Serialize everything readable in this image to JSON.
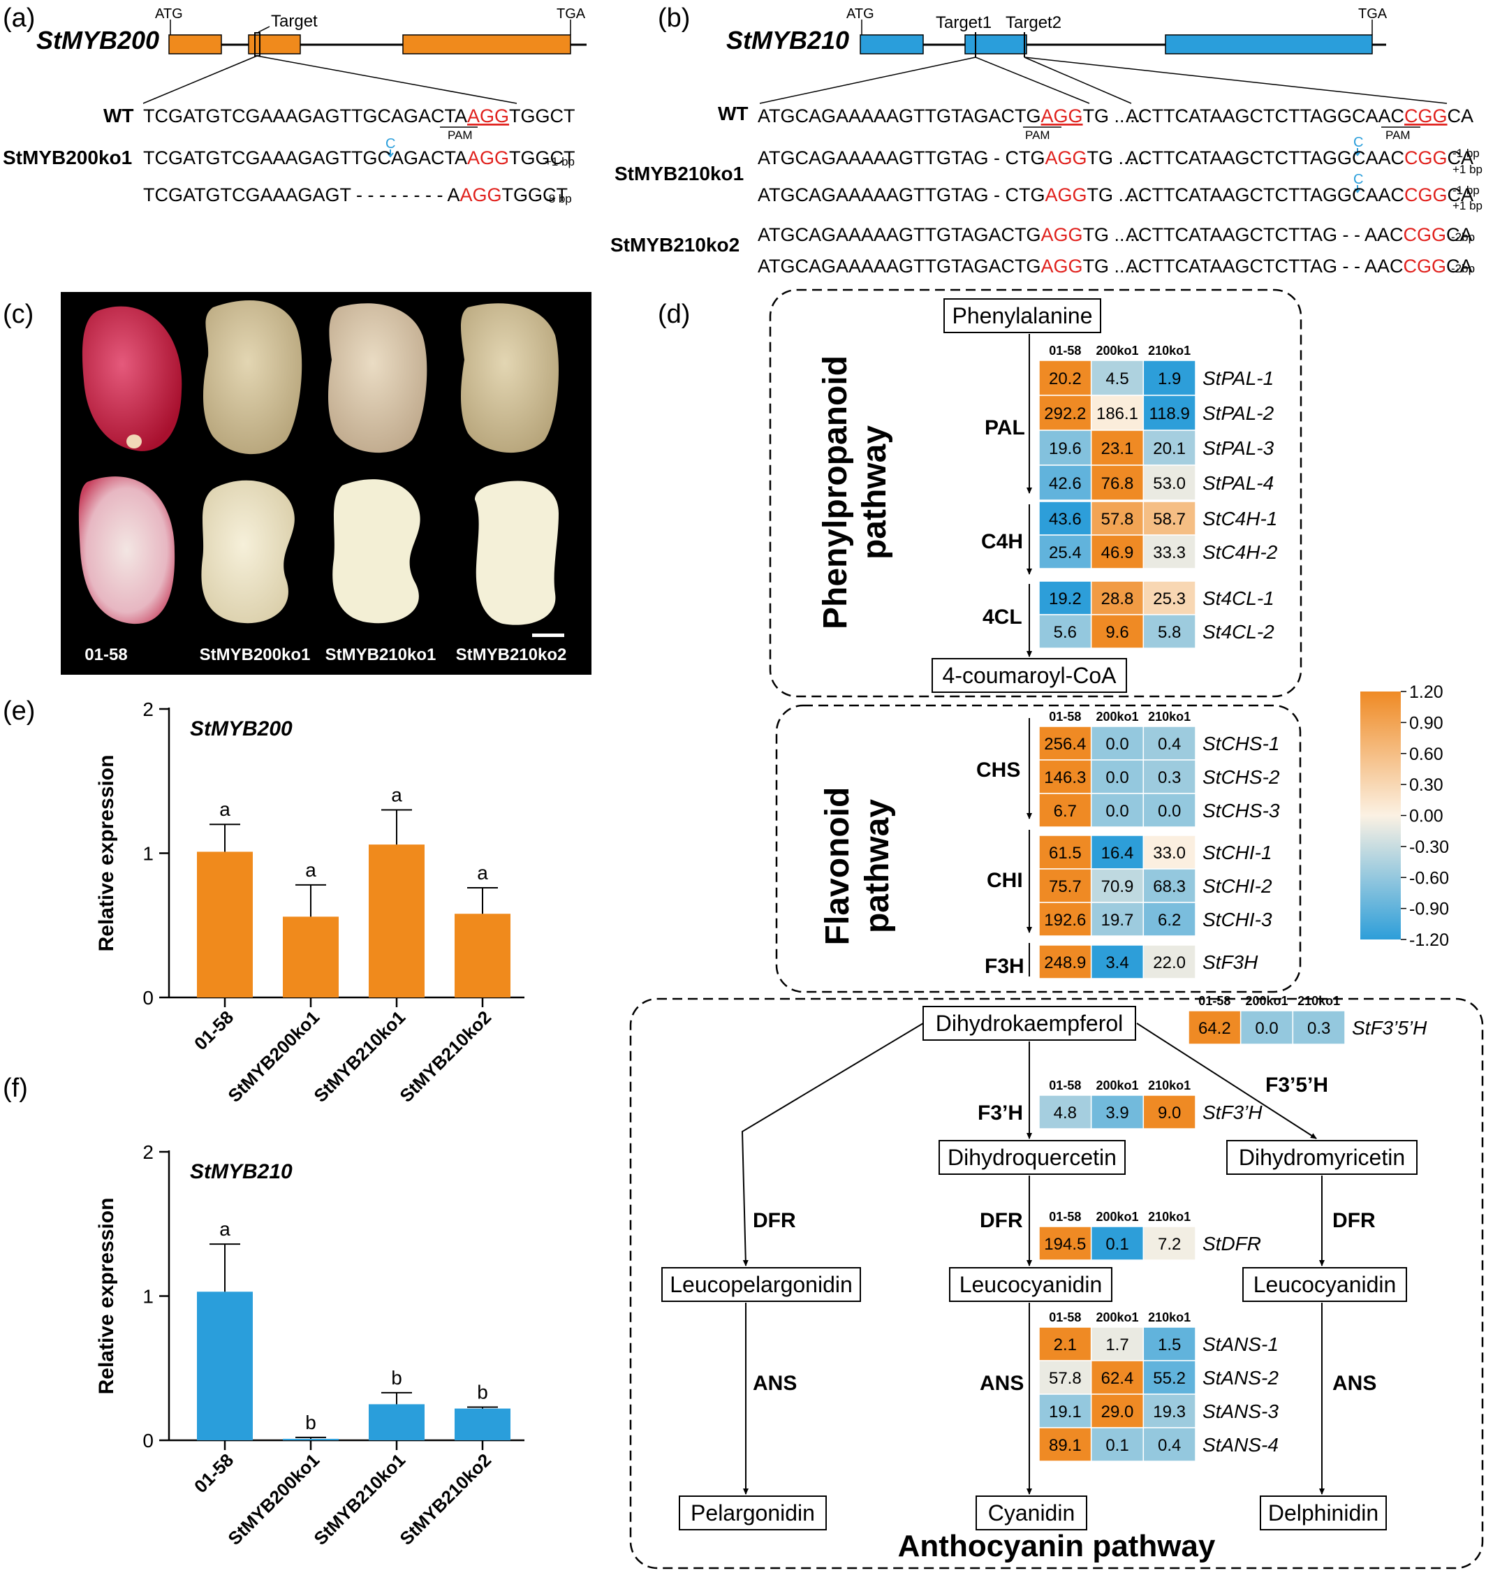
{
  "panels": {
    "a": "(a)",
    "b": "(b)",
    "c": "(c)",
    "d": "(d)",
    "e": "(e)",
    "f": "(f)"
  },
  "panel_a": {
    "gene": "StMYB200",
    "atg": "ATG",
    "tga": "TGA",
    "target": "Target",
    "wt_label": "WT",
    "wt_pre": "TCGATGTCGAAAGAGTTGCAGACTA",
    "wt_pam": "AGG",
    "wt_post": "TGGCT",
    "pam": "PAM",
    "ko_label": "StMYB200ko1",
    "ins": "C",
    "ko1_pre": "TCGATGTCGAAAGAGTTGCAGACTA",
    "ko1_pam": "AGG",
    "ko1_post": "TGGCT",
    "ko1_tag": "+1 bp",
    "ko2_pre": "TCGATGTCGAAAGAGT - - - - - - - - A",
    "ko2_pam": "AGG",
    "ko2_post": "TGGCT",
    "ko2_tag": "-8 bp"
  },
  "panel_b": {
    "gene": "StMYB210",
    "atg": "ATG",
    "tga": "TGA",
    "target1": "Target1",
    "target2": "Target2",
    "wt_label": "WT",
    "pam": "PAM",
    "ins": "C",
    "wt_l_pre": "ATGCAGAAAAAGTTGTAGACTG",
    "wt_l_pam": "AGG",
    "wt_l_post": "TG ......",
    "wt_r_pre": "ACTTCATAAGCTCTTAGGCAAC",
    "wt_r_pam": "CGG",
    "wt_r_post": "CA",
    "ko1_label": "StMYB210ko1",
    "ko2_label": "StMYB210ko2",
    "ko1_l_pre": "ATGCAGAAAAAGTTGTAG - CTG",
    "ko1_l_pam": "AGG",
    "ko1_l_post": "TG ......",
    "ko1_r_pre": "ACTTCATAAGCTCTTAGGCAAC",
    "ko1_r_pam": "CGG",
    "ko1_r_post": "CA",
    "ko1_tag_a": "-1 bp",
    "ko1_tag_b": "+1 bp",
    "ko2_l_pre": "ATGCAGAAAAAGTTGTAGACTG",
    "ko2_l_pam": "AGG",
    "ko2_l_post": "TG ......",
    "ko2_r_pre": "ACTTCATAAGCTCTTAG - - AAC",
    "ko2_r_pam": "CGG",
    "ko2_r_post": "CA",
    "ko2_tag": "-2bp"
  },
  "panel_c": {
    "labels": [
      "01-58",
      "StMYB200ko1",
      "StMYB210ko1",
      "StMYB210ko2"
    ]
  },
  "panel_d": {
    "columns": [
      "01-58",
      "200ko1",
      "210ko1"
    ],
    "pathways": {
      "phenylpropanoid_1": "Phenylpropanoid",
      "phenylpropanoid_2": "pathway",
      "flavonoid_1": "Flavonoid",
      "flavonoid_2": "pathway",
      "anthocyanin": "Anthocyanin pathway"
    },
    "metabolites": {
      "phe": "Phenylalanine",
      "coa": "4-coumaroyl-CoA",
      "dhk": "Dihydrokaempferol",
      "dhq": "Dihydroquercetin",
      "dhm": "Dihydromyricetin",
      "lpel": "Leucopelargonidin",
      "lcy1": "Leucocyanidin",
      "lcy2": "Leucocyanidin",
      "pel": "Pelargonidin",
      "cya": "Cyanidin",
      "del": "Delphinidin"
    },
    "enzymes": {
      "pal": "PAL",
      "c4h": "C4H",
      "cl4": "4CL",
      "chs": "CHS",
      "chi": "CHI",
      "f3h": "F3H",
      "f3ph": "F3’H",
      "f35h": "F3’5’H",
      "dfr_l": "DFR",
      "dfr_m": "DFR",
      "dfr_r": "DFR",
      "ans_l": "ANS",
      "ans_m": "ANS",
      "ans_r": "ANS"
    },
    "colorbar": {
      "ticks": [
        "1.20",
        "0.90",
        "0.60",
        "0.30",
        "0.00",
        "-0.30",
        "-0.60",
        "-0.90",
        "-1.20"
      ]
    },
    "heatmap_colors": {
      "high": "#ef8a24",
      "mid": "#fbf1e3",
      "low": "#2d9ed9"
    },
    "groups": [
      {
        "id": "pal",
        "rows": [
          {
            "gene": "StPAL-1",
            "values": [
              "20.2",
              "4.5",
              "1.9"
            ],
            "z": [
              1.2,
              -0.45,
              -1.2
            ]
          },
          {
            "gene": "StPAL-2",
            "values": [
              "292.2",
              "186.1",
              "118.9"
            ],
            "z": [
              1.2,
              0.05,
              -1.2
            ]
          },
          {
            "gene": "StPAL-3",
            "values": [
              "19.6",
              "23.1",
              "20.1"
            ],
            "z": [
              -0.7,
              1.2,
              -0.5
            ]
          },
          {
            "gene": "StPAL-4",
            "values": [
              "42.6",
              "76.8",
              "53.0"
            ],
            "z": [
              -0.9,
              1.2,
              -0.1
            ]
          }
        ]
      },
      {
        "id": "c4h",
        "rows": [
          {
            "gene": "StC4H-1",
            "values": [
              "43.6",
              "57.8",
              "58.7"
            ],
            "z": [
              -1.2,
              0.9,
              0.6
            ]
          },
          {
            "gene": "StC4H-2",
            "values": [
              "25.4",
              "46.9",
              "33.3"
            ],
            "z": [
              -0.9,
              1.2,
              -0.1
            ]
          }
        ]
      },
      {
        "id": "cl4",
        "rows": [
          {
            "gene": "St4CL-1",
            "values": [
              "19.2",
              "28.8",
              "25.3"
            ],
            "z": [
              -1.2,
              1.0,
              0.3
            ]
          },
          {
            "gene": "St4CL-2",
            "values": [
              "5.6",
              "9.6",
              "5.8"
            ],
            "z": [
              -0.6,
              1.2,
              -0.55
            ]
          }
        ]
      },
      {
        "id": "chs",
        "rows": [
          {
            "gene": "StCHS-1",
            "values": [
              "256.4",
              "0.0",
              "0.4"
            ],
            "z": [
              1.2,
              -0.6,
              -0.55
            ]
          },
          {
            "gene": "StCHS-2",
            "values": [
              "146.3",
              "0.0",
              "0.3"
            ],
            "z": [
              1.2,
              -0.6,
              -0.55
            ]
          },
          {
            "gene": "StCHS-3",
            "values": [
              "6.7",
              "0.0",
              "0.0"
            ],
            "z": [
              1.2,
              -0.6,
              -0.6
            ]
          }
        ]
      },
      {
        "id": "chi",
        "rows": [
          {
            "gene": "StCHI-1",
            "values": [
              "61.5",
              "16.4",
              "33.0"
            ],
            "z": [
              1.2,
              -1.2,
              0.02
            ]
          },
          {
            "gene": "StCHI-2",
            "values": [
              "75.7",
              "70.9",
              "68.3"
            ],
            "z": [
              1.2,
              -0.35,
              -0.6
            ]
          },
          {
            "gene": "StCHI-3",
            "values": [
              "192.6",
              "19.7",
              "6.2"
            ],
            "z": [
              1.2,
              -0.55,
              -0.75
            ]
          }
        ]
      },
      {
        "id": "f3h",
        "rows": [
          {
            "gene": "StF3H",
            "values": [
              "248.9",
              "3.4",
              "22.0"
            ],
            "z": [
              1.2,
              -1.2,
              -0.1
            ]
          }
        ]
      },
      {
        "id": "f35h",
        "rows": [
          {
            "gene": "StF3’5’H",
            "values": [
              "64.2",
              "0.0",
              "0.3"
            ],
            "z": [
              1.2,
              -0.6,
              -0.6
            ]
          }
        ]
      },
      {
        "id": "f3ph",
        "rows": [
          {
            "gene": "StF3’H",
            "values": [
              "4.8",
              "3.9",
              "9.0"
            ],
            "z": [
              -0.5,
              -0.8,
              1.2
            ]
          }
        ]
      },
      {
        "id": "dfr",
        "rows": [
          {
            "gene": "StDFR",
            "values": [
              "194.5",
              "0.1",
              "7.2"
            ],
            "z": [
              1.2,
              -1.2,
              -0.05
            ]
          }
        ]
      },
      {
        "id": "ans",
        "rows": [
          {
            "gene": "StANS-1",
            "values": [
              "2.1",
              "1.7",
              "1.5"
            ],
            "z": [
              1.2,
              -0.1,
              -0.9
            ]
          },
          {
            "gene": "StANS-2",
            "values": [
              "57.8",
              "62.4",
              "55.2"
            ],
            "z": [
              -0.1,
              1.2,
              -0.9
            ]
          },
          {
            "gene": "StANS-3",
            "values": [
              "19.1",
              "29.0",
              "19.3"
            ],
            "z": [
              -0.6,
              1.2,
              -0.55
            ]
          },
          {
            "gene": "StANS-4",
            "values": [
              "89.1",
              "0.1",
              "0.4"
            ],
            "z": [
              1.2,
              -0.6,
              -0.6
            ]
          }
        ]
      }
    ]
  },
  "chart_data": [
    {
      "type": "bar",
      "title": "StMYB200",
      "ylabel": "Relative expression",
      "categories": [
        "01-58",
        "StMYB200ko1",
        "StMYB210ko1",
        "StMYB210ko2"
      ],
      "values": [
        1.01,
        0.56,
        1.06,
        0.58
      ],
      "errors": [
        0.19,
        0.22,
        0.24,
        0.18
      ],
      "letters": [
        "a",
        "a",
        "a",
        "a"
      ],
      "ylim": [
        0,
        2
      ],
      "yticks": [
        "0",
        "1",
        "2"
      ],
      "color": "#f08a1c"
    },
    {
      "type": "bar",
      "title": "StMYB210",
      "ylabel": "Relative expression",
      "categories": [
        "01-58",
        "StMYB200ko1",
        "StMYB210ko1",
        "StMYB210ko2"
      ],
      "values": [
        1.03,
        0.01,
        0.25,
        0.22
      ],
      "errors": [
        0.33,
        0.01,
        0.08,
        0.01
      ],
      "letters": [
        "a",
        "b",
        "b",
        "b"
      ],
      "ylim": [
        0,
        2
      ],
      "yticks": [
        "0",
        "1",
        "2"
      ],
      "color": "#2a9edb"
    }
  ]
}
